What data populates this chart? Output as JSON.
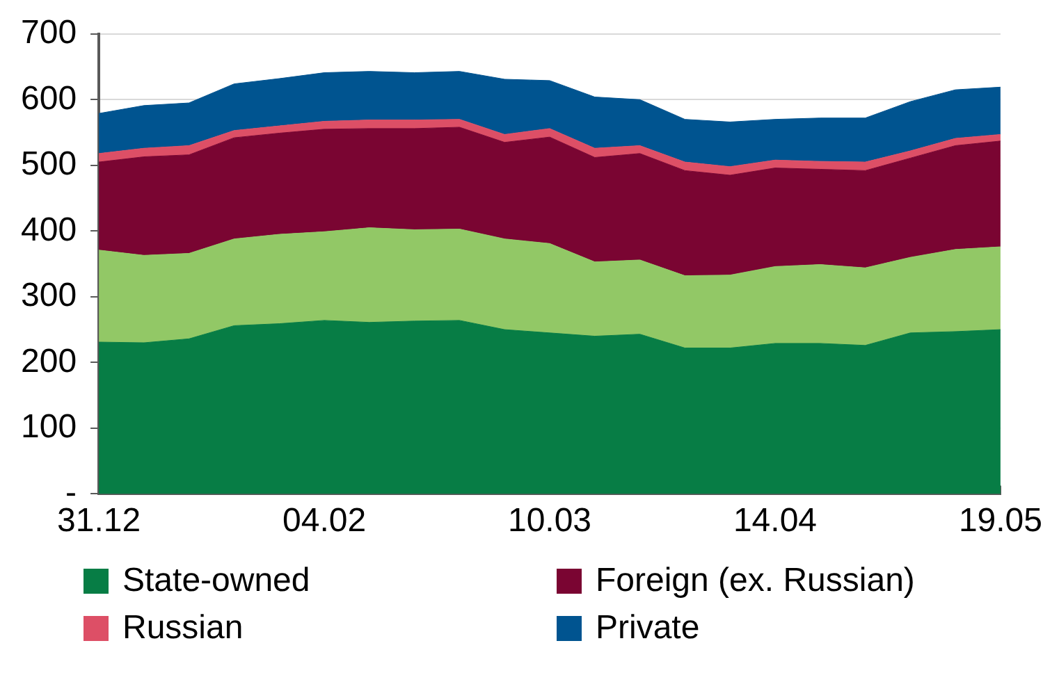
{
  "chart_data": {
    "type": "area",
    "stacked": true,
    "categories": [
      "31.12",
      null,
      null,
      null,
      null,
      "04.02",
      null,
      null,
      null,
      null,
      "10.03",
      null,
      null,
      null,
      null,
      "14.04",
      null,
      null,
      null,
      null,
      "19.05"
    ],
    "series": [
      {
        "name": "State-owned",
        "color": "#077d45",
        "values": [
          231,
          230,
          236,
          256,
          259,
          264,
          261,
          263,
          264,
          250,
          245,
          240,
          243,
          222,
          222,
          229,
          229,
          226,
          245,
          247,
          250
        ]
      },
      {
        "color": "#92c866",
        "values": [
          140,
          133,
          130,
          132,
          136,
          135,
          144,
          139,
          139,
          138,
          136,
          113,
          113,
          110,
          111,
          117,
          120,
          118,
          115,
          125,
          126
        ]
      },
      {
        "name": "Foreign (ex. Russian)",
        "color": "#7a0532",
        "values": [
          134,
          150,
          150,
          154,
          154,
          156,
          151,
          154,
          155,
          147,
          162,
          159,
          162,
          160,
          152,
          150,
          145,
          148,
          151,
          158,
          161
        ]
      },
      {
        "name": "Russian",
        "color": "#dd4f66",
        "values": [
          13,
          13,
          14,
          11,
          11,
          12,
          13,
          13,
          12,
          12,
          13,
          14,
          12,
          13,
          13,
          12,
          12,
          13,
          11,
          11,
          10
        ]
      },
      {
        "name": "Private",
        "color": "#005490",
        "values": [
          61,
          65,
          65,
          71,
          72,
          74,
          74,
          72,
          73,
          84,
          73,
          78,
          70,
          65,
          68,
          62,
          66,
          67,
          75,
          74,
          72
        ]
      }
    ],
    "ylim": [
      0,
      700
    ],
    "yticks": [
      {
        "value": 0,
        "label": "-"
      },
      100,
      200,
      300,
      400,
      500,
      600,
      700
    ],
    "grid": "y",
    "legend": "bottom"
  }
}
